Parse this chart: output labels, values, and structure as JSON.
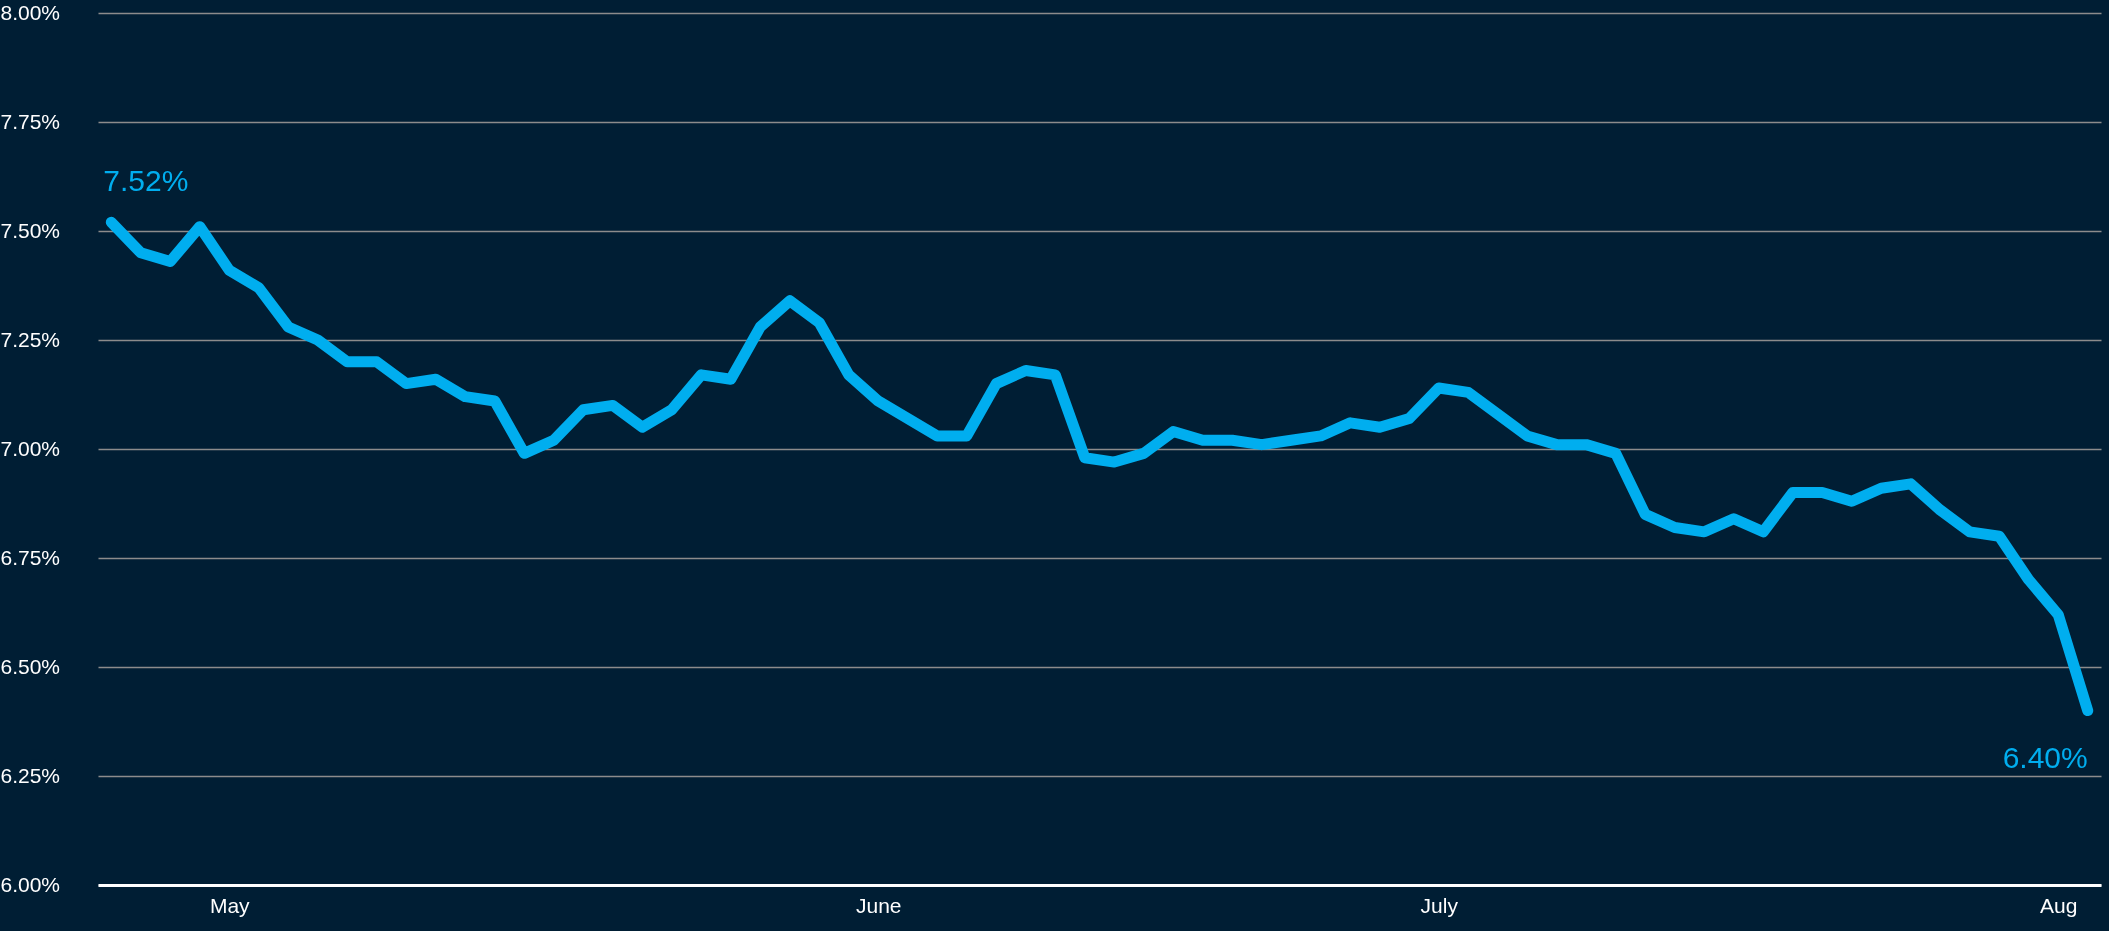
{
  "chart_data": {
    "type": "line",
    "categories": [
      null,
      null,
      null,
      null,
      "May",
      null,
      null,
      null,
      null,
      null,
      null,
      null,
      null,
      null,
      null,
      null,
      null,
      null,
      null,
      null,
      null,
      null,
      null,
      null,
      null,
      null,
      "June",
      null,
      null,
      null,
      null,
      null,
      null,
      null,
      null,
      null,
      null,
      null,
      null,
      null,
      null,
      null,
      null,
      null,
      null,
      "July",
      null,
      null,
      null,
      null,
      null,
      null,
      null,
      null,
      null,
      null,
      null,
      null,
      null,
      null,
      null,
      null,
      null,
      null,
      null,
      null,
      "Aug",
      null
    ],
    "series": [
      {
        "color": "#00aeef",
        "values": [
          7.52,
          7.45,
          7.43,
          7.51,
          7.41,
          7.37,
          7.28,
          7.25,
          7.2,
          7.2,
          7.15,
          7.16,
          7.12,
          7.11,
          6.99,
          7.02,
          7.09,
          7.1,
          7.05,
          7.09,
          7.17,
          7.16,
          7.28,
          7.34,
          7.29,
          7.17,
          7.11,
          7.07,
          7.03,
          7.03,
          7.15,
          7.18,
          7.17,
          6.98,
          6.97,
          6.99,
          7.04,
          7.02,
          7.02,
          7.01,
          7.02,
          7.03,
          7.06,
          7.05,
          7.07,
          7.14,
          7.13,
          7.08,
          7.03,
          7.01,
          7.01,
          6.99,
          6.85,
          6.82,
          6.81,
          6.84,
          6.81,
          6.9,
          6.9,
          6.88,
          6.91,
          6.92,
          6.86,
          6.81,
          6.8,
          6.7,
          6.62,
          6.4
        ],
        "value_labels": [
          "7.52%",
          null,
          null,
          null,
          null,
          null,
          null,
          null,
          null,
          null,
          null,
          null,
          null,
          null,
          null,
          null,
          null,
          null,
          null,
          null,
          null,
          null,
          null,
          null,
          null,
          null,
          null,
          null,
          null,
          null,
          null,
          null,
          null,
          null,
          null,
          null,
          null,
          null,
          null,
          null,
          null,
          null,
          null,
          null,
          null,
          null,
          null,
          null,
          null,
          null,
          null,
          null,
          null,
          null,
          null,
          null,
          null,
          null,
          null,
          null,
          null,
          null,
          null,
          null,
          null,
          null,
          null,
          "6.40%"
        ]
      }
    ],
    "ylim": [
      6.0,
      8.0
    ],
    "yticks": [
      {
        "value": 6.0,
        "label": "6.00%"
      },
      {
        "value": 6.25,
        "label": "6.25%"
      },
      {
        "value": 6.5,
        "label": "6.50%"
      },
      {
        "value": 6.75,
        "label": "6.75%"
      },
      {
        "value": 7.0,
        "label": "7.00%"
      },
      {
        "value": 7.25,
        "label": "7.25%"
      },
      {
        "value": 7.5,
        "label": "7.50%"
      },
      {
        "value": 7.75,
        "label": "7.75%"
      },
      {
        "value": 8.0,
        "label": "8.00%"
      }
    ],
    "grid": "y",
    "marker": "none",
    "line_style": "solid"
  }
}
